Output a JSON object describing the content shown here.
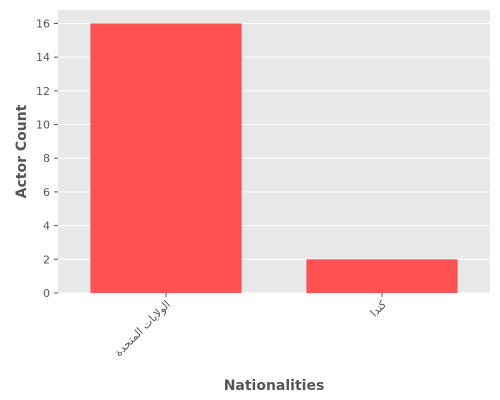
{
  "chart_data": {
    "type": "bar",
    "categories": [
      "الولايات المتحدة",
      "كندا"
    ],
    "values": [
      16,
      2
    ],
    "xlabel": "Nationalities",
    "ylabel": "Actor Count",
    "ylim": [
      0,
      16.8
    ],
    "yticks": [
      0,
      2,
      4,
      6,
      8,
      10,
      12,
      14,
      16
    ],
    "grid": true,
    "colors": {
      "bar": "#ff5353",
      "panel_background": "#e8e8e8",
      "grid": "#ffffff",
      "text": "#555555"
    }
  }
}
